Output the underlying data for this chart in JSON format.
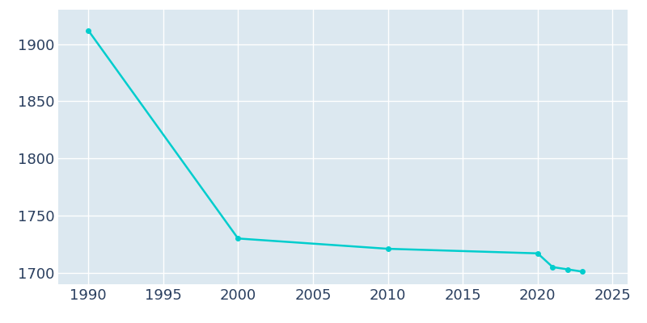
{
  "years": [
    1990,
    2000,
    2010,
    2020,
    2021,
    2022,
    2023
  ],
  "population": [
    1912,
    1730,
    1721,
    1717,
    1705,
    1703,
    1701
  ],
  "line_color": "#00CDCD",
  "marker_style": "o",
  "marker_size": 4,
  "plot_bg_color": "#dce8f0",
  "fig_bg_color": "#ffffff",
  "grid_color": "#ffffff",
  "xlim": [
    1988,
    2026
  ],
  "ylim": [
    1690,
    1930
  ],
  "yticks": [
    1700,
    1750,
    1800,
    1850,
    1900
  ],
  "xticks": [
    1990,
    1995,
    2000,
    2005,
    2010,
    2015,
    2020,
    2025
  ],
  "tick_label_color": "#2a3f5f",
  "tick_fontsize": 13,
  "linewidth": 1.8
}
